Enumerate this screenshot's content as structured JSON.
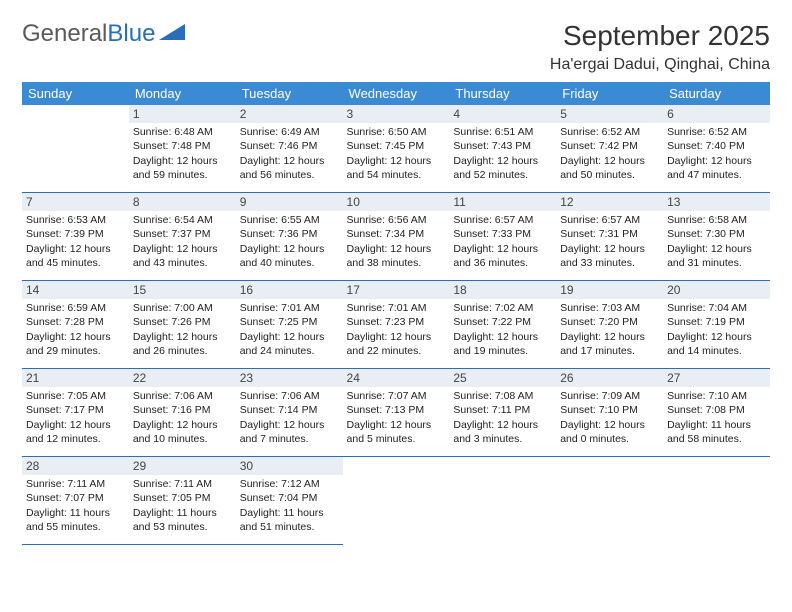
{
  "brand": {
    "text1": "General",
    "text2": "Blue"
  },
  "title": "September 2025",
  "location": "Ha'ergai Dadui, Qinghai, China",
  "header_bg": "#3b8bd4",
  "day_headers": [
    "Sunday",
    "Monday",
    "Tuesday",
    "Wednesday",
    "Thursday",
    "Friday",
    "Saturday"
  ],
  "weeks": [
    [
      null,
      {
        "n": "1",
        "sr": "6:48 AM",
        "ss": "7:48 PM",
        "dl": "12 hours and 59 minutes."
      },
      {
        "n": "2",
        "sr": "6:49 AM",
        "ss": "7:46 PM",
        "dl": "12 hours and 56 minutes."
      },
      {
        "n": "3",
        "sr": "6:50 AM",
        "ss": "7:45 PM",
        "dl": "12 hours and 54 minutes."
      },
      {
        "n": "4",
        "sr": "6:51 AM",
        "ss": "7:43 PM",
        "dl": "12 hours and 52 minutes."
      },
      {
        "n": "5",
        "sr": "6:52 AM",
        "ss": "7:42 PM",
        "dl": "12 hours and 50 minutes."
      },
      {
        "n": "6",
        "sr": "6:52 AM",
        "ss": "7:40 PM",
        "dl": "12 hours and 47 minutes."
      }
    ],
    [
      {
        "n": "7",
        "sr": "6:53 AM",
        "ss": "7:39 PM",
        "dl": "12 hours and 45 minutes."
      },
      {
        "n": "8",
        "sr": "6:54 AM",
        "ss": "7:37 PM",
        "dl": "12 hours and 43 minutes."
      },
      {
        "n": "9",
        "sr": "6:55 AM",
        "ss": "7:36 PM",
        "dl": "12 hours and 40 minutes."
      },
      {
        "n": "10",
        "sr": "6:56 AM",
        "ss": "7:34 PM",
        "dl": "12 hours and 38 minutes."
      },
      {
        "n": "11",
        "sr": "6:57 AM",
        "ss": "7:33 PM",
        "dl": "12 hours and 36 minutes."
      },
      {
        "n": "12",
        "sr": "6:57 AM",
        "ss": "7:31 PM",
        "dl": "12 hours and 33 minutes."
      },
      {
        "n": "13",
        "sr": "6:58 AM",
        "ss": "7:30 PM",
        "dl": "12 hours and 31 minutes."
      }
    ],
    [
      {
        "n": "14",
        "sr": "6:59 AM",
        "ss": "7:28 PM",
        "dl": "12 hours and 29 minutes."
      },
      {
        "n": "15",
        "sr": "7:00 AM",
        "ss": "7:26 PM",
        "dl": "12 hours and 26 minutes."
      },
      {
        "n": "16",
        "sr": "7:01 AM",
        "ss": "7:25 PM",
        "dl": "12 hours and 24 minutes."
      },
      {
        "n": "17",
        "sr": "7:01 AM",
        "ss": "7:23 PM",
        "dl": "12 hours and 22 minutes."
      },
      {
        "n": "18",
        "sr": "7:02 AM",
        "ss": "7:22 PM",
        "dl": "12 hours and 19 minutes."
      },
      {
        "n": "19",
        "sr": "7:03 AM",
        "ss": "7:20 PM",
        "dl": "12 hours and 17 minutes."
      },
      {
        "n": "20",
        "sr": "7:04 AM",
        "ss": "7:19 PM",
        "dl": "12 hours and 14 minutes."
      }
    ],
    [
      {
        "n": "21",
        "sr": "7:05 AM",
        "ss": "7:17 PM",
        "dl": "12 hours and 12 minutes."
      },
      {
        "n": "22",
        "sr": "7:06 AM",
        "ss": "7:16 PM",
        "dl": "12 hours and 10 minutes."
      },
      {
        "n": "23",
        "sr": "7:06 AM",
        "ss": "7:14 PM",
        "dl": "12 hours and 7 minutes."
      },
      {
        "n": "24",
        "sr": "7:07 AM",
        "ss": "7:13 PM",
        "dl": "12 hours and 5 minutes."
      },
      {
        "n": "25",
        "sr": "7:08 AM",
        "ss": "7:11 PM",
        "dl": "12 hours and 3 minutes."
      },
      {
        "n": "26",
        "sr": "7:09 AM",
        "ss": "7:10 PM",
        "dl": "12 hours and 0 minutes."
      },
      {
        "n": "27",
        "sr": "7:10 AM",
        "ss": "7:08 PM",
        "dl": "11 hours and 58 minutes."
      }
    ],
    [
      {
        "n": "28",
        "sr": "7:11 AM",
        "ss": "7:07 PM",
        "dl": "11 hours and 55 minutes."
      },
      {
        "n": "29",
        "sr": "7:11 AM",
        "ss": "7:05 PM",
        "dl": "11 hours and 53 minutes."
      },
      {
        "n": "30",
        "sr": "7:12 AM",
        "ss": "7:04 PM",
        "dl": "11 hours and 51 minutes."
      },
      null,
      null,
      null,
      null
    ]
  ],
  "labels": {
    "sunrise": "Sunrise: ",
    "sunset": "Sunset: ",
    "daylight": "Daylight: "
  }
}
